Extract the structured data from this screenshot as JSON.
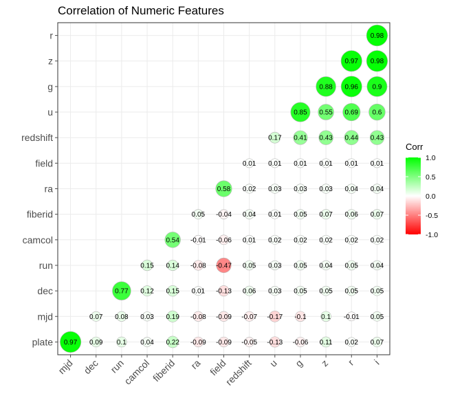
{
  "chart_data": {
    "type": "heatmap",
    "title": "Correlation of Numeric Features",
    "x_categories": [
      "mjd",
      "dec",
      "run",
      "camcol",
      "fiberid",
      "ra",
      "field",
      "redshift",
      "u",
      "g",
      "z",
      "r",
      "i"
    ],
    "y_categories": [
      "plate",
      "mjd",
      "dec",
      "run",
      "camcol",
      "fiberid",
      "ra",
      "field",
      "redshift",
      "u",
      "g",
      "z",
      "r"
    ],
    "cells": [
      {
        "x": "mjd",
        "y": "plate",
        "v": 0.97
      },
      {
        "x": "dec",
        "y": "plate",
        "v": 0.09
      },
      {
        "x": "run",
        "y": "plate",
        "v": 0.1
      },
      {
        "x": "camcol",
        "y": "plate",
        "v": 0.04
      },
      {
        "x": "fiberid",
        "y": "plate",
        "v": 0.22
      },
      {
        "x": "ra",
        "y": "plate",
        "v": -0.09
      },
      {
        "x": "field",
        "y": "plate",
        "v": -0.09
      },
      {
        "x": "redshift",
        "y": "plate",
        "v": -0.05
      },
      {
        "x": "u",
        "y": "plate",
        "v": -0.13
      },
      {
        "x": "g",
        "y": "plate",
        "v": -0.06
      },
      {
        "x": "z",
        "y": "plate",
        "v": 0.11
      },
      {
        "x": "r",
        "y": "plate",
        "v": 0.02
      },
      {
        "x": "i",
        "y": "plate",
        "v": 0.07
      },
      {
        "x": "dec",
        "y": "mjd",
        "v": 0.07
      },
      {
        "x": "run",
        "y": "mjd",
        "v": 0.08
      },
      {
        "x": "camcol",
        "y": "mjd",
        "v": 0.03
      },
      {
        "x": "fiberid",
        "y": "mjd",
        "v": 0.19
      },
      {
        "x": "ra",
        "y": "mjd",
        "v": -0.08
      },
      {
        "x": "field",
        "y": "mjd",
        "v": -0.09
      },
      {
        "x": "redshift",
        "y": "mjd",
        "v": -0.07
      },
      {
        "x": "u",
        "y": "mjd",
        "v": -0.17
      },
      {
        "x": "g",
        "y": "mjd",
        "v": -0.1
      },
      {
        "x": "z",
        "y": "mjd",
        "v": 0.1
      },
      {
        "x": "r",
        "y": "mjd",
        "v": -0.01
      },
      {
        "x": "i",
        "y": "mjd",
        "v": 0.05
      },
      {
        "x": "run",
        "y": "dec",
        "v": 0.77
      },
      {
        "x": "camcol",
        "y": "dec",
        "v": 0.12
      },
      {
        "x": "fiberid",
        "y": "dec",
        "v": 0.15
      },
      {
        "x": "ra",
        "y": "dec",
        "v": 0.01
      },
      {
        "x": "field",
        "y": "dec",
        "v": -0.13
      },
      {
        "x": "redshift",
        "y": "dec",
        "v": 0.06
      },
      {
        "x": "u",
        "y": "dec",
        "v": 0.03
      },
      {
        "x": "g",
        "y": "dec",
        "v": 0.05
      },
      {
        "x": "z",
        "y": "dec",
        "v": 0.05
      },
      {
        "x": "r",
        "y": "dec",
        "v": 0.05
      },
      {
        "x": "i",
        "y": "dec",
        "v": 0.05
      },
      {
        "x": "camcol",
        "y": "run",
        "v": 0.15
      },
      {
        "x": "fiberid",
        "y": "run",
        "v": 0.14
      },
      {
        "x": "ra",
        "y": "run",
        "v": -0.08
      },
      {
        "x": "field",
        "y": "run",
        "v": -0.47
      },
      {
        "x": "redshift",
        "y": "run",
        "v": 0.05
      },
      {
        "x": "u",
        "y": "run",
        "v": 0.03
      },
      {
        "x": "g",
        "y": "run",
        "v": 0.05
      },
      {
        "x": "z",
        "y": "run",
        "v": 0.04
      },
      {
        "x": "r",
        "y": "run",
        "v": 0.05
      },
      {
        "x": "i",
        "y": "run",
        "v": 0.04
      },
      {
        "x": "fiberid",
        "y": "camcol",
        "v": 0.54
      },
      {
        "x": "ra",
        "y": "camcol",
        "v": -0.01
      },
      {
        "x": "field",
        "y": "camcol",
        "v": -0.06
      },
      {
        "x": "redshift",
        "y": "camcol",
        "v": 0.01
      },
      {
        "x": "u",
        "y": "camcol",
        "v": 0.02
      },
      {
        "x": "g",
        "y": "camcol",
        "v": 0.02
      },
      {
        "x": "z",
        "y": "camcol",
        "v": 0.02
      },
      {
        "x": "r",
        "y": "camcol",
        "v": 0.02
      },
      {
        "x": "i",
        "y": "camcol",
        "v": 0.02
      },
      {
        "x": "ra",
        "y": "fiberid",
        "v": 0.05
      },
      {
        "x": "field",
        "y": "fiberid",
        "v": -0.04
      },
      {
        "x": "redshift",
        "y": "fiberid",
        "v": 0.04
      },
      {
        "x": "u",
        "y": "fiberid",
        "v": 0.01
      },
      {
        "x": "g",
        "y": "fiberid",
        "v": 0.05
      },
      {
        "x": "z",
        "y": "fiberid",
        "v": 0.07
      },
      {
        "x": "r",
        "y": "fiberid",
        "v": 0.06
      },
      {
        "x": "i",
        "y": "fiberid",
        "v": 0.07
      },
      {
        "x": "field",
        "y": "ra",
        "v": 0.58
      },
      {
        "x": "redshift",
        "y": "ra",
        "v": 0.02
      },
      {
        "x": "u",
        "y": "ra",
        "v": 0.03
      },
      {
        "x": "g",
        "y": "ra",
        "v": 0.03
      },
      {
        "x": "z",
        "y": "ra",
        "v": 0.03
      },
      {
        "x": "r",
        "y": "ra",
        "v": 0.04
      },
      {
        "x": "i",
        "y": "ra",
        "v": 0.04
      },
      {
        "x": "redshift",
        "y": "field",
        "v": 0.01
      },
      {
        "x": "u",
        "y": "field",
        "v": 0.01
      },
      {
        "x": "g",
        "y": "field",
        "v": 0.01
      },
      {
        "x": "z",
        "y": "field",
        "v": 0.01
      },
      {
        "x": "r",
        "y": "field",
        "v": 0.01
      },
      {
        "x": "i",
        "y": "field",
        "v": 0.01
      },
      {
        "x": "u",
        "y": "redshift",
        "v": 0.17
      },
      {
        "x": "g",
        "y": "redshift",
        "v": 0.41
      },
      {
        "x": "z",
        "y": "redshift",
        "v": 0.43
      },
      {
        "x": "r",
        "y": "redshift",
        "v": 0.44
      },
      {
        "x": "i",
        "y": "redshift",
        "v": 0.43
      },
      {
        "x": "g",
        "y": "u",
        "v": 0.85
      },
      {
        "x": "z",
        "y": "u",
        "v": 0.55
      },
      {
        "x": "r",
        "y": "u",
        "v": 0.69
      },
      {
        "x": "i",
        "y": "u",
        "v": 0.6
      },
      {
        "x": "z",
        "y": "g",
        "v": 0.88
      },
      {
        "x": "r",
        "y": "g",
        "v": 0.96
      },
      {
        "x": "i",
        "y": "g",
        "v": 0.9
      },
      {
        "x": "r",
        "y": "z",
        "v": 0.97
      },
      {
        "x": "i",
        "y": "z",
        "v": 0.98
      },
      {
        "x": "i",
        "y": "r",
        "v": 0.98
      }
    ],
    "legend": {
      "title": "Corr",
      "ticks": [
        "1.0",
        "0.5",
        "0.0",
        "-0.5",
        "-1.0"
      ],
      "values": [
        1.0,
        0.5,
        0.0,
        -0.5,
        -1.0
      ],
      "range": [
        -1,
        1
      ],
      "colors": {
        "low": "#ff0000",
        "mid": "#ffffff",
        "high": "#00ff00"
      },
      "placement": "right"
    },
    "grid": true,
    "panel_border": true,
    "colors": {
      "grid": "#ebebeb",
      "border": "#333333",
      "tick": "#4d4d4d",
      "circle_stroke": "#b3b3b3"
    }
  }
}
